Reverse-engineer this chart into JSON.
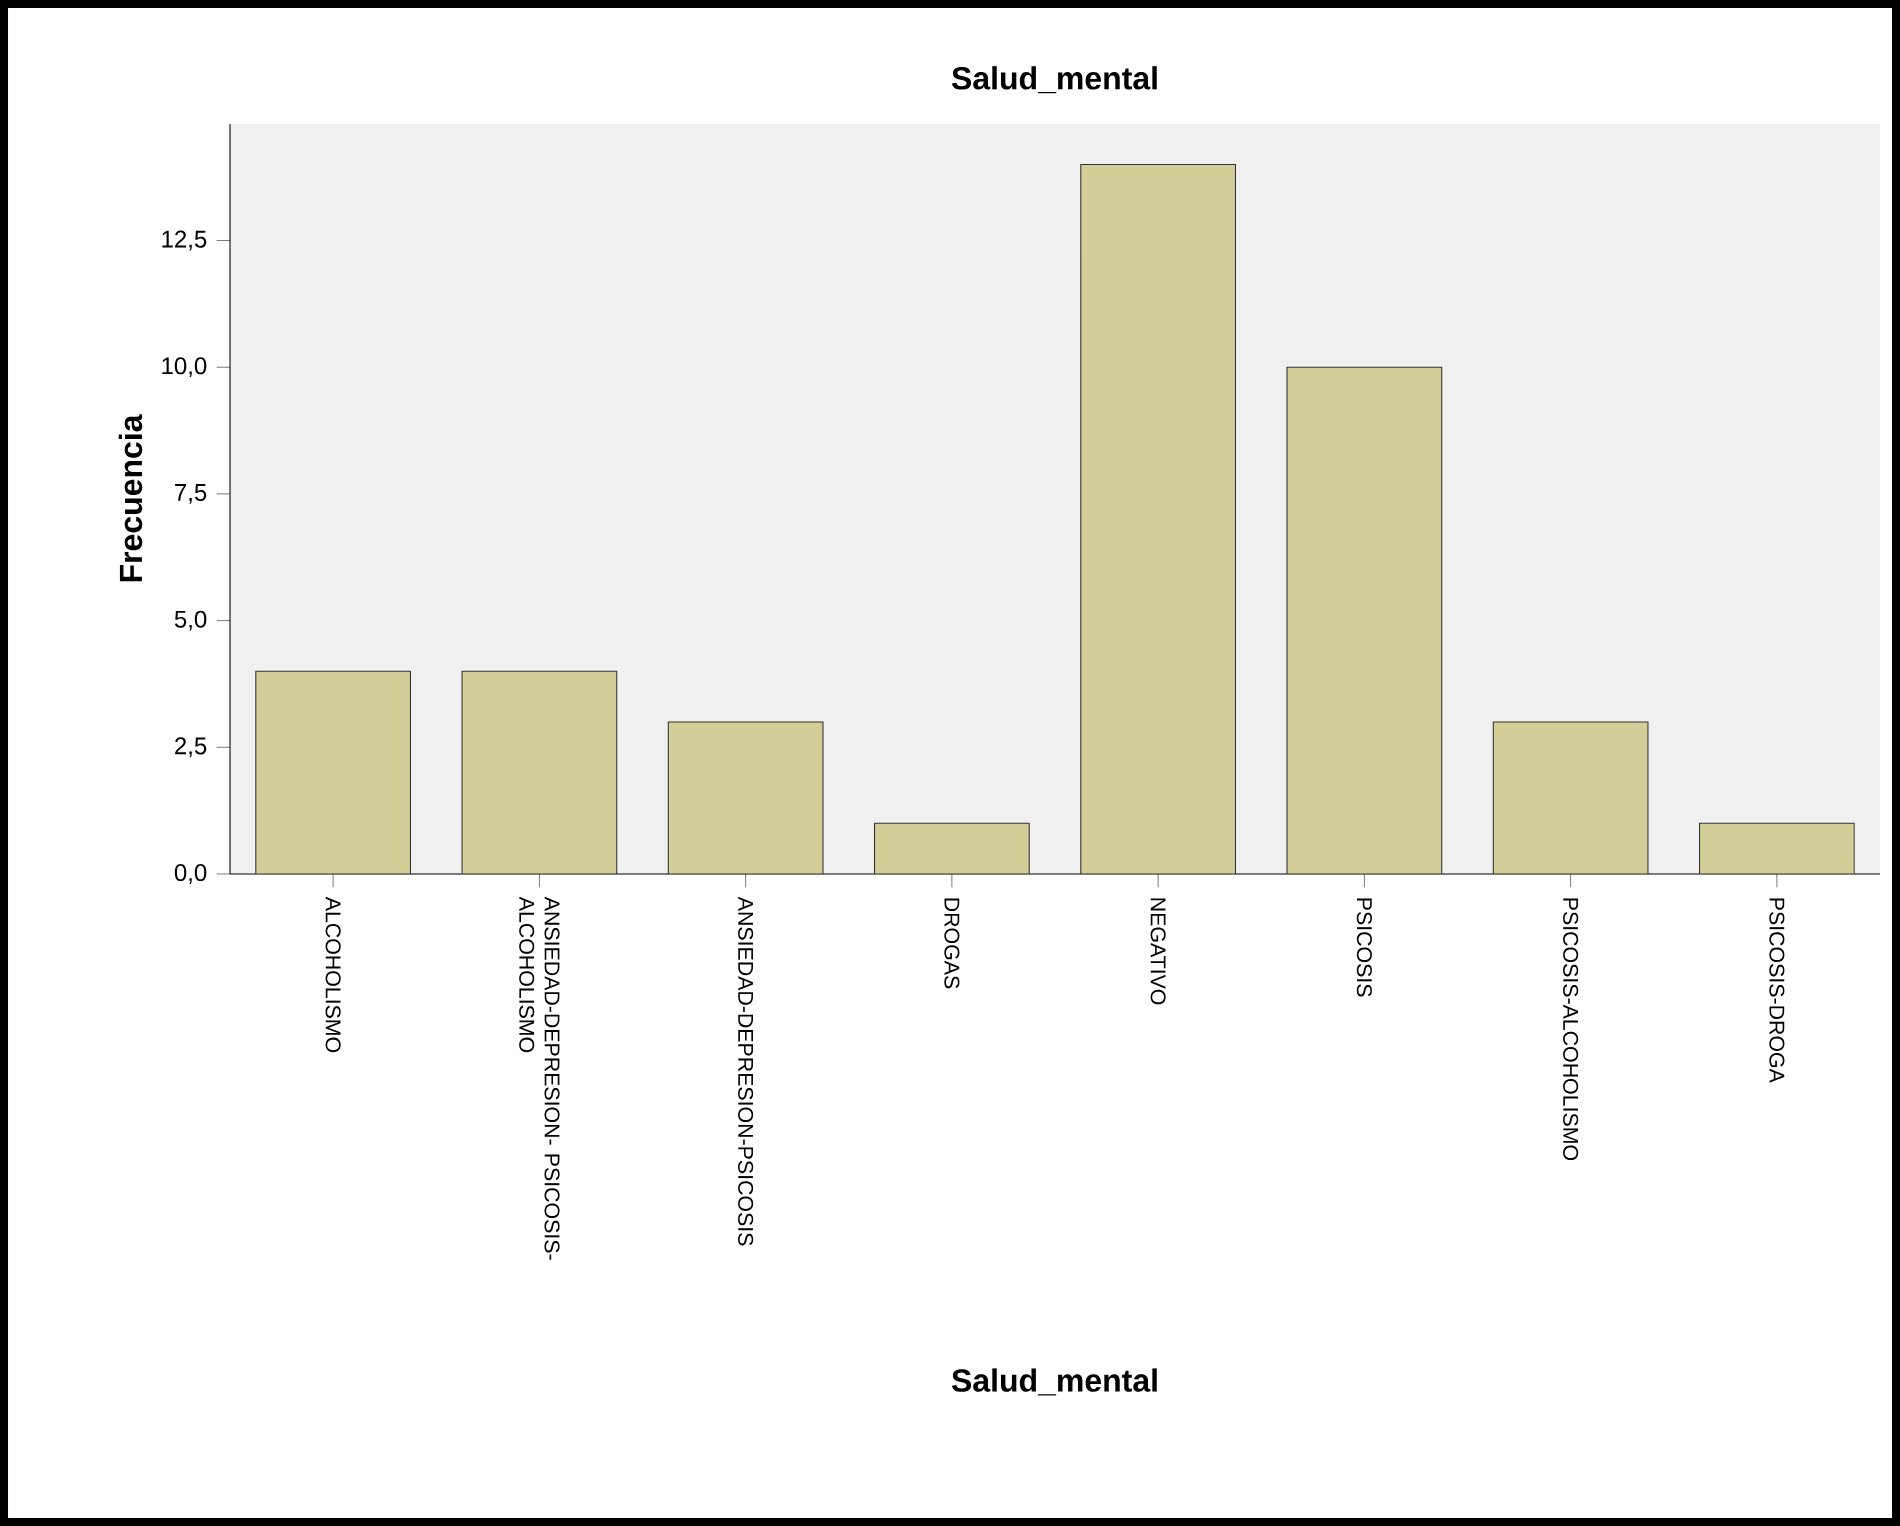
{
  "chart_data": {
    "type": "bar",
    "title": "Salud_mental",
    "xlabel": "Salud_mental",
    "ylabel": "Frecuencia",
    "categories": [
      "ALCOHOLISMO",
      "ANSIEDAD-DEPRESION- PSICOSIS-ALCOHOLISMO",
      "ANSIEDAD-DEPRESION-PSICOSIS",
      "DROGAS",
      "NEGATIVO",
      "PSICOSIS",
      "PSICOSIS-ALCOHOLISMO",
      "PSICOSIS-DROGA"
    ],
    "values": [
      4,
      4,
      3,
      1,
      14,
      10,
      3,
      1
    ],
    "color": "#d3ce98",
    "ylim": [
      0,
      14.8
    ],
    "yticks": [
      {
        "value": 0,
        "label": "0,0"
      },
      {
        "value": 2.5,
        "label": "2,5"
      },
      {
        "value": 5,
        "label": "5,0"
      },
      {
        "value": 7.5,
        "label": "7,5"
      },
      {
        "value": 10,
        "label": "10,0"
      },
      {
        "value": 12.5,
        "label": "12,5"
      }
    ]
  }
}
